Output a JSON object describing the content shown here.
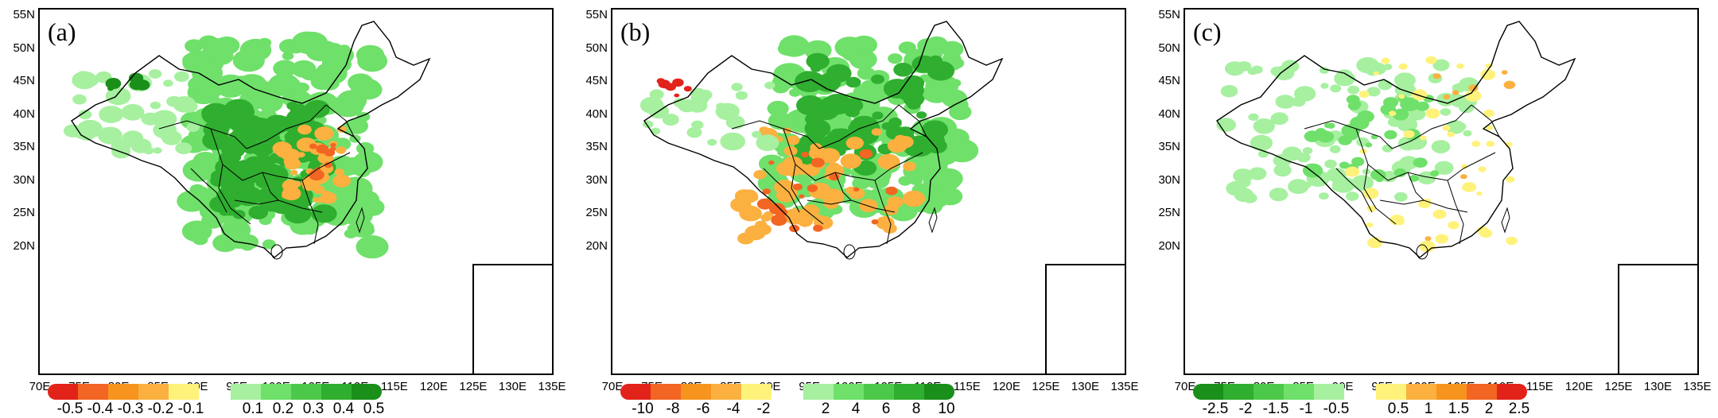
{
  "panels": [
    {
      "label": "(a)",
      "y_ticks": [
        "55N",
        "50N",
        "45N",
        "40N",
        "35N",
        "30N",
        "25N",
        "20N"
      ],
      "x_ticks": [
        "70E",
        "75E",
        "80E",
        "85E",
        "90E",
        "95E",
        "100E",
        "105E",
        "110E",
        "115E",
        "120E",
        "125E",
        "130E",
        "135E"
      ],
      "colorbar_left": {
        "colors": [
          "#e2231a",
          "#f26522",
          "#f7941d",
          "#fbb040",
          "#fff27a"
        ],
        "labels": [
          "-0.5",
          "-0.4",
          "-0.3",
          "-0.2",
          "-0.1"
        ]
      },
      "colorbar_right": {
        "colors": [
          "#a6f0a0",
          "#6fe06a",
          "#4cc94a",
          "#2fae2f",
          "#1a8f1a"
        ],
        "labels": [
          "0.1",
          "0.2",
          "0.3",
          "0.4",
          "0.5"
        ]
      }
    },
    {
      "label": "(b)",
      "y_ticks": [
        "55N",
        "50N",
        "45N",
        "40N",
        "35N",
        "30N",
        "25N",
        "20N"
      ],
      "x_ticks": [
        "70E",
        "75E",
        "80E",
        "85E",
        "90E",
        "95E",
        "100E",
        "105E",
        "110E",
        "115E",
        "120E",
        "125E",
        "130E",
        "135E"
      ],
      "colorbar_left": {
        "colors": [
          "#e2231a",
          "#f26522",
          "#f7941d",
          "#fbb040",
          "#fff27a"
        ],
        "labels": [
          "-10",
          "-8",
          "-6",
          "-4",
          "-2"
        ]
      },
      "colorbar_right": {
        "colors": [
          "#a6f0a0",
          "#6fe06a",
          "#4cc94a",
          "#2fae2f",
          "#1a8f1a"
        ],
        "labels": [
          "2",
          "4",
          "6",
          "8",
          "10"
        ]
      }
    },
    {
      "label": "(c)",
      "y_ticks": [
        "55N",
        "50N",
        "45N",
        "40N",
        "35N",
        "30N",
        "25N",
        "20N"
      ],
      "x_ticks": [
        "70E",
        "75E",
        "80E",
        "85E",
        "90E",
        "95E",
        "100E",
        "105E",
        "110E",
        "115E",
        "120E",
        "125E",
        "130E",
        "135E"
      ],
      "colorbar_left": {
        "colors": [
          "#1a8f1a",
          "#2fae2f",
          "#4cc94a",
          "#6fe06a",
          "#a6f0a0"
        ],
        "labels": [
          "-2.5",
          "-2",
          "-1.5",
          "-1",
          "-0.5"
        ]
      },
      "colorbar_right": {
        "colors": [
          "#fff27a",
          "#fbb040",
          "#f7941d",
          "#f26522",
          "#e2231a"
        ],
        "labels": [
          "0.5",
          "1",
          "1.5",
          "2",
          "2.5"
        ]
      }
    }
  ]
}
